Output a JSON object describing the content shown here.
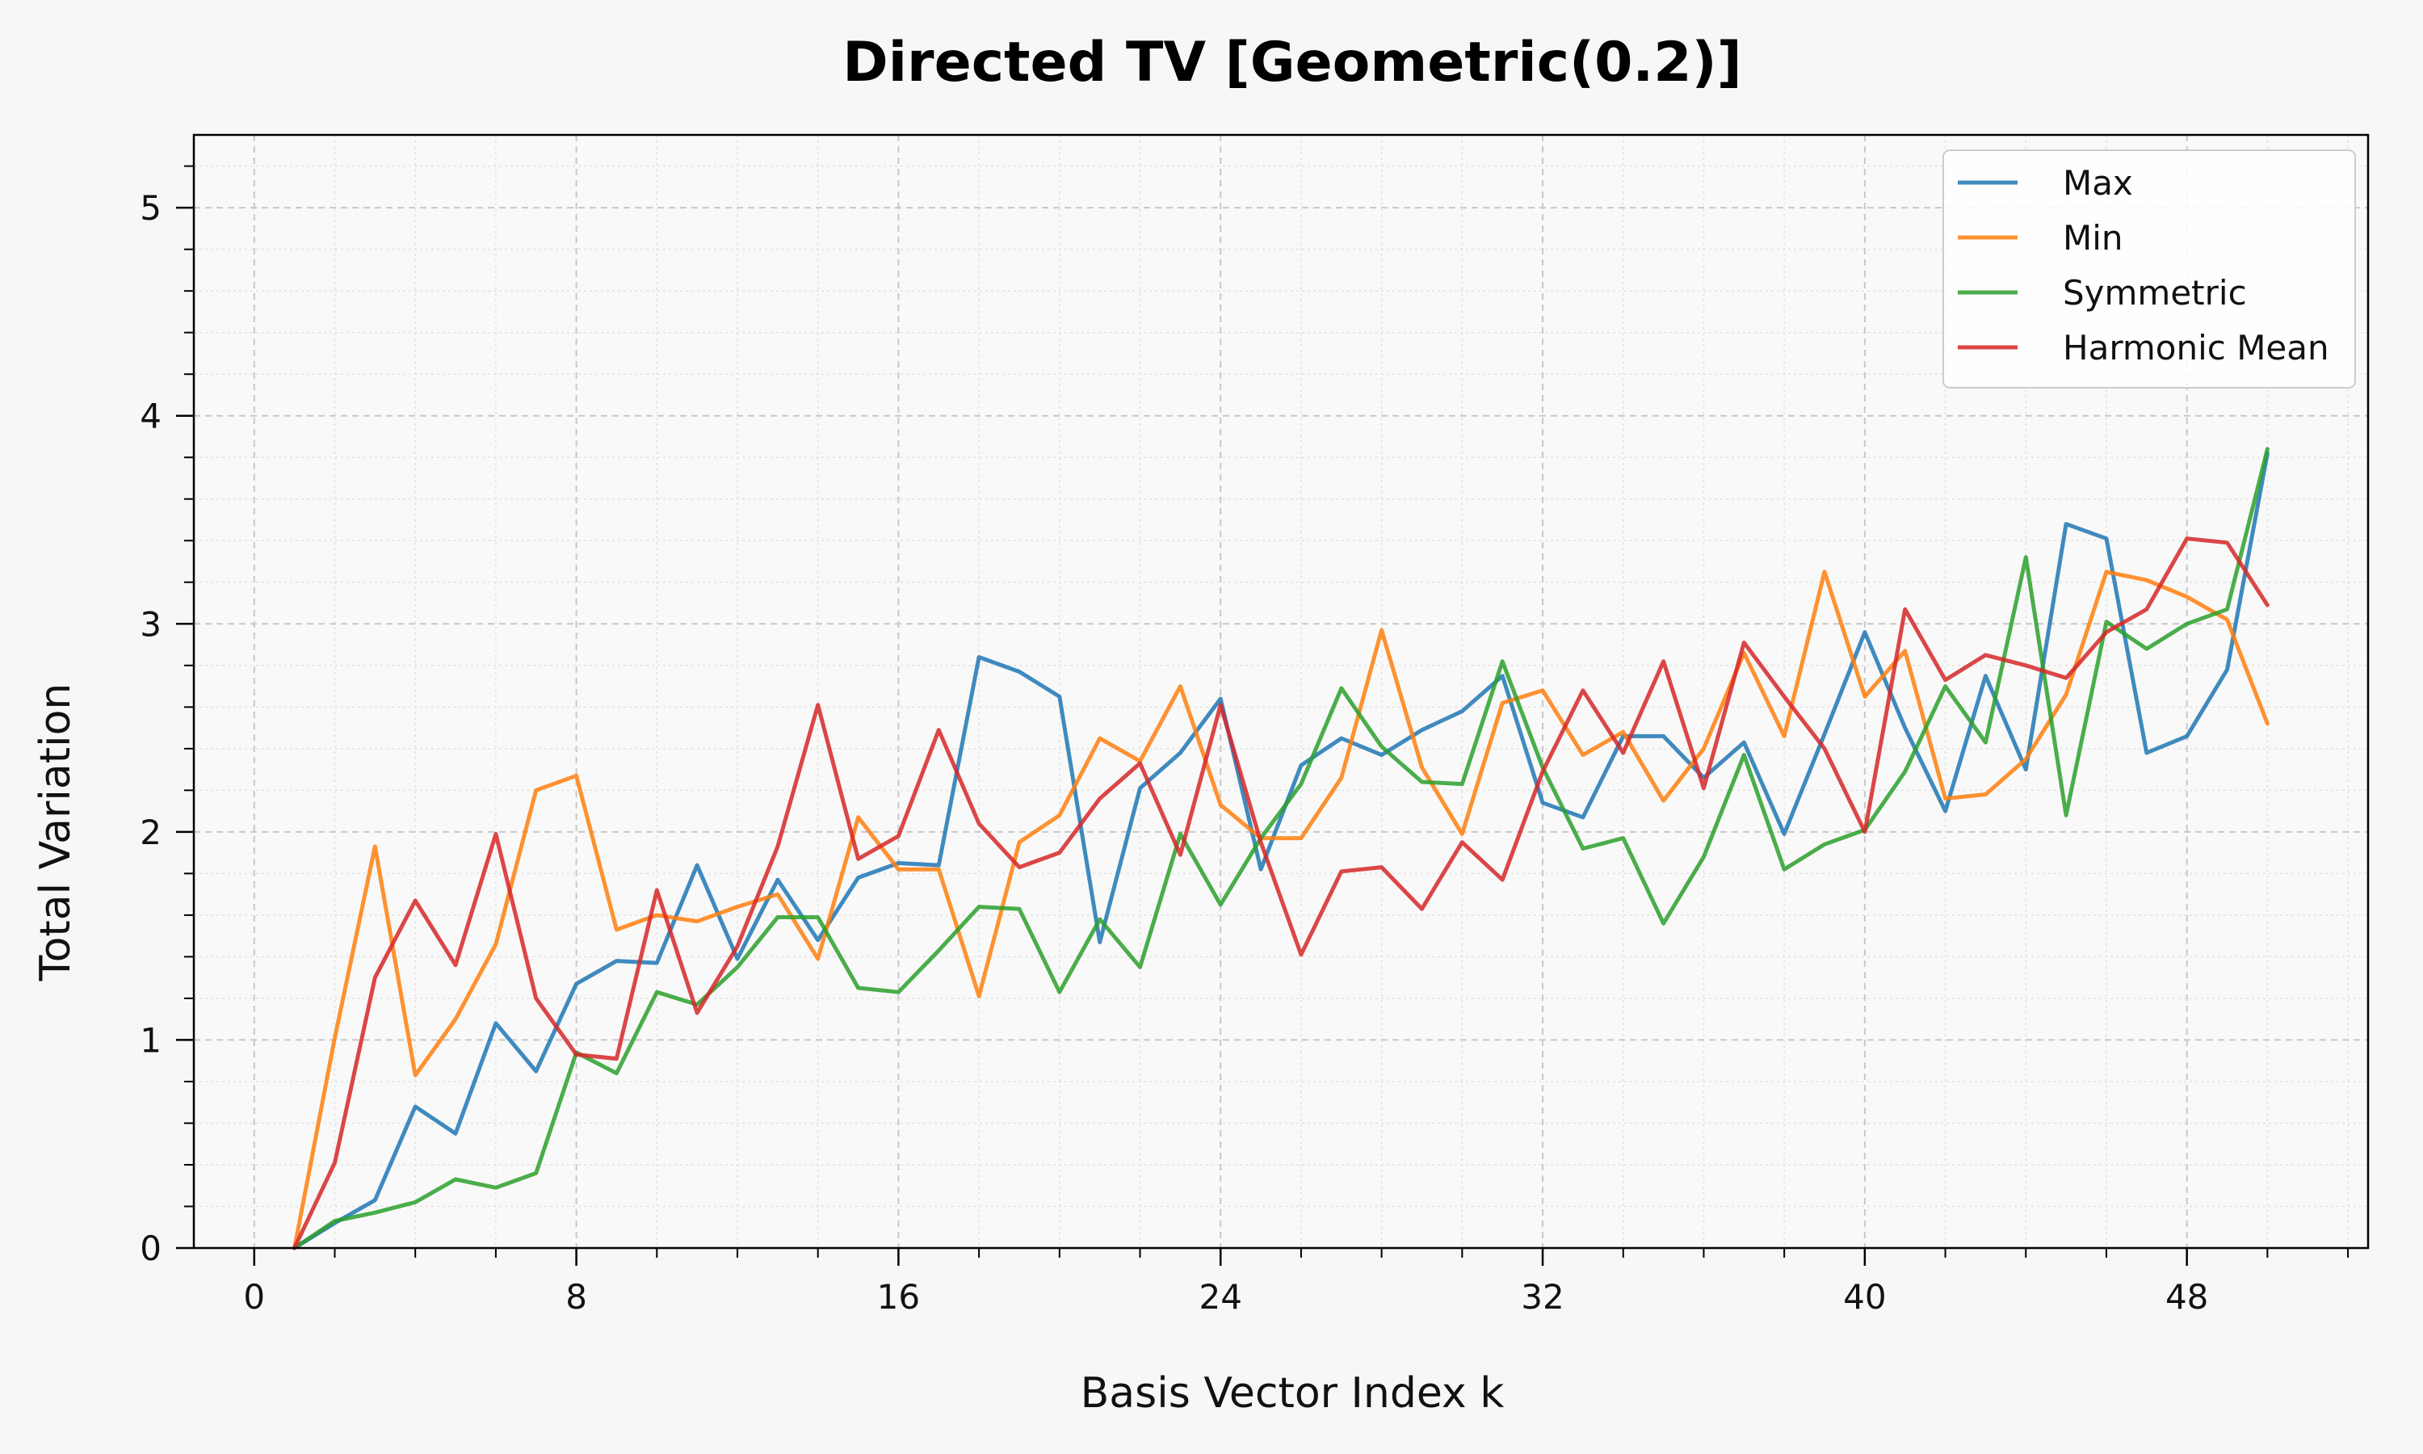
{
  "chart_data": {
    "type": "line",
    "title": "Directed TV [Geometric(0.2)]",
    "xlabel": "Basis Vector Index k",
    "ylabel": "Total Variation",
    "xlim": [
      -1.5,
      52.5
    ],
    "ylim": [
      0,
      5.35
    ],
    "xticks": [
      0,
      8,
      16,
      24,
      32,
      40,
      48
    ],
    "yticks": [
      0,
      1,
      2,
      3,
      4,
      5
    ],
    "grid": true,
    "legend_position": "top-right",
    "x": [
      1,
      2,
      3,
      4,
      5,
      6,
      7,
      8,
      9,
      10,
      11,
      12,
      13,
      14,
      15,
      16,
      17,
      18,
      19,
      20,
      21,
      22,
      23,
      24,
      25,
      26,
      27,
      28,
      29,
      30,
      31,
      32,
      33,
      34,
      35,
      36,
      37,
      38,
      39,
      40,
      41,
      42,
      43,
      44,
      45,
      46,
      47,
      48,
      49,
      50
    ],
    "series": [
      {
        "name": "Max",
        "color": "#1f77b4",
        "values": [
          0.0,
          0.12,
          0.23,
          0.68,
          0.55,
          1.08,
          0.85,
          1.27,
          1.38,
          1.37,
          1.84,
          1.39,
          1.77,
          1.48,
          1.78,
          1.85,
          1.84,
          2.84,
          2.77,
          2.65,
          1.47,
          2.21,
          2.38,
          2.64,
          1.82,
          2.32,
          2.45,
          2.37,
          2.49,
          2.58,
          2.75,
          2.14,
          2.07,
          2.46,
          2.46,
          2.26,
          2.43,
          1.99,
          2.47,
          2.96,
          2.5,
          2.1,
          2.75,
          2.3,
          3.48,
          3.41,
          2.38,
          2.46,
          2.78,
          3.82
        ]
      },
      {
        "name": "Min",
        "color": "#ff7f0e",
        "values": [
          0.0,
          1.01,
          1.93,
          0.83,
          1.1,
          1.46,
          2.2,
          2.27,
          1.53,
          1.6,
          1.57,
          1.64,
          1.7,
          1.39,
          2.07,
          1.82,
          1.82,
          1.21,
          1.95,
          2.08,
          2.45,
          2.34,
          2.7,
          2.13,
          1.97,
          1.97,
          2.26,
          2.97,
          2.31,
          1.99,
          2.62,
          2.68,
          2.37,
          2.48,
          2.15,
          2.4,
          2.86,
          2.46,
          3.25,
          2.65,
          2.87,
          2.16,
          2.18,
          2.35,
          2.66,
          3.25,
          3.21,
          3.13,
          3.02,
          2.52
        ]
      },
      {
        "name": "Symmetric",
        "color": "#2ca02c",
        "values": [
          0.0,
          0.13,
          0.17,
          0.22,
          0.33,
          0.29,
          0.36,
          0.94,
          0.84,
          1.23,
          1.17,
          1.35,
          1.59,
          1.59,
          1.25,
          1.23,
          1.43,
          1.64,
          1.63,
          1.23,
          1.58,
          1.35,
          1.99,
          1.65,
          1.97,
          2.23,
          2.69,
          2.41,
          2.24,
          2.23,
          2.82,
          2.31,
          1.92,
          1.97,
          1.56,
          1.88,
          2.37,
          1.82,
          1.94,
          2.01,
          2.29,
          2.7,
          2.43,
          3.32,
          2.08,
          3.01,
          2.88,
          3.0,
          3.07,
          3.84
        ]
      },
      {
        "name": "Harmonic Mean",
        "color": "#d62728",
        "values": [
          0.0,
          0.41,
          1.3,
          1.67,
          1.36,
          1.99,
          1.2,
          0.93,
          0.91,
          1.72,
          1.13,
          1.45,
          1.93,
          2.61,
          1.87,
          1.98,
          2.49,
          2.04,
          1.83,
          1.9,
          2.16,
          2.33,
          1.89,
          2.61,
          1.95,
          1.41,
          1.81,
          1.83,
          1.63,
          1.95,
          1.77,
          2.29,
          2.68,
          2.38,
          2.82,
          2.21,
          2.91,
          2.65,
          2.4,
          2.0,
          3.07,
          2.73,
          2.85,
          2.8,
          2.74,
          2.96,
          3.07,
          3.41,
          3.39,
          3.09
        ]
      }
    ]
  }
}
